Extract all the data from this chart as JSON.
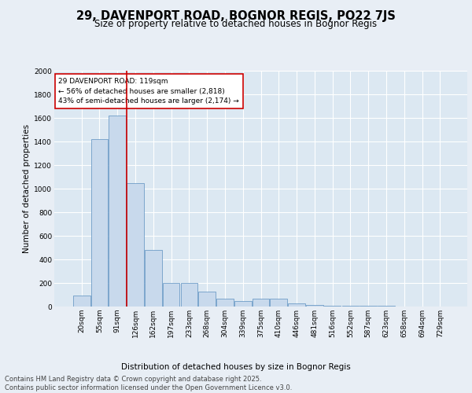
{
  "title1": "29, DAVENPORT ROAD, BOGNOR REGIS, PO22 7JS",
  "title2": "Size of property relative to detached houses in Bognor Regis",
  "xlabel": "Distribution of detached houses by size in Bognor Regis",
  "ylabel": "Number of detached properties",
  "categories": [
    "20sqm",
    "55sqm",
    "91sqm",
    "126sqm",
    "162sqm",
    "197sqm",
    "233sqm",
    "268sqm",
    "304sqm",
    "339sqm",
    "375sqm",
    "410sqm",
    "446sqm",
    "481sqm",
    "516sqm",
    "552sqm",
    "587sqm",
    "623sqm",
    "658sqm",
    "694sqm",
    "729sqm"
  ],
  "values": [
    95,
    1420,
    1620,
    1050,
    480,
    200,
    200,
    130,
    65,
    50,
    65,
    65,
    30,
    15,
    10,
    8,
    5,
    4,
    3,
    2,
    1
  ],
  "bar_color": "#c8d9ec",
  "bar_edge_color": "#5a8fc0",
  "vertical_line_color": "#cc0000",
  "annotation_line1": "29 DAVENPORT ROAD: 119sqm",
  "annotation_line2": "← 56% of detached houses are smaller (2,818)",
  "annotation_line3": "43% of semi-detached houses are larger (2,174) →",
  "annotation_box_color": "#ffffff",
  "annotation_box_edge_color": "#cc0000",
  "ylim": [
    0,
    2000
  ],
  "yticks": [
    0,
    200,
    400,
    600,
    800,
    1000,
    1200,
    1400,
    1600,
    1800,
    2000
  ],
  "bg_color": "#e8eef5",
  "plot_bg_color": "#dce8f2",
  "footer_text": "Contains HM Land Registry data © Crown copyright and database right 2025.\nContains public sector information licensed under the Open Government Licence v3.0.",
  "title_fontsize": 10.5,
  "subtitle_fontsize": 8.5,
  "axis_label_fontsize": 7.5,
  "tick_fontsize": 6.5,
  "annotation_fontsize": 6.5,
  "footer_fontsize": 6.0
}
